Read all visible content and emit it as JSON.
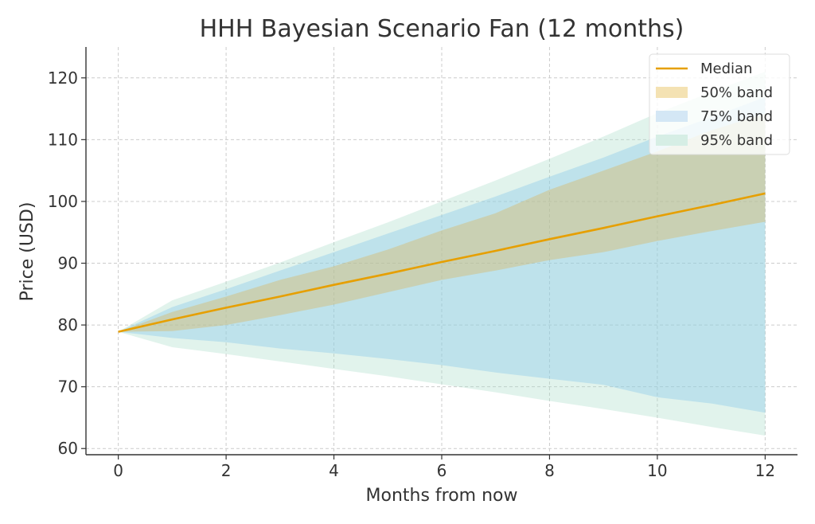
{
  "chart_data": {
    "type": "area",
    "title": "HHH Bayesian Scenario Fan (12 months)",
    "xlabel": "Months from now",
    "ylabel": "Price (USD)",
    "xlim": [
      -0.6,
      12.6
    ],
    "ylim": [
      59,
      125
    ],
    "xticks": [
      0,
      2,
      4,
      6,
      8,
      10,
      12
    ],
    "yticks": [
      60,
      70,
      80,
      90,
      100,
      110,
      120
    ],
    "grid": true,
    "legend_position": "top-right",
    "x": [
      0,
      1,
      2,
      3,
      4,
      5,
      6,
      7,
      8,
      9,
      10,
      11,
      12
    ],
    "median": [
      78.9,
      80.9,
      82.8,
      84.6,
      86.5,
      88.3,
      90.2,
      92.0,
      93.9,
      95.7,
      97.6,
      99.4,
      101.3
    ],
    "bands": [
      {
        "name": "95% band",
        "color": "#d6eee5",
        "lower": [
          78.9,
          76.4,
          75.3,
          74.1,
          72.9,
          71.7,
          70.4,
          69.1,
          67.7,
          66.4,
          65.0,
          63.5,
          62.1
        ],
        "upper": [
          78.9,
          84.0,
          87.0,
          90.1,
          93.4,
          96.6,
          100.0,
          103.4,
          106.9,
          110.5,
          114.3,
          117.7,
          121.0
        ]
      },
      {
        "name": "75% band",
        "color": "#d4e7f5",
        "lower": [
          78.9,
          77.9,
          77.2,
          76.2,
          75.4,
          74.5,
          73.5,
          72.3,
          71.3,
          70.3,
          68.3,
          67.3,
          65.8
        ],
        "upper": [
          78.9,
          82.9,
          85.8,
          88.8,
          91.8,
          94.8,
          97.8,
          100.8,
          104.0,
          107.1,
          110.5,
          113.6,
          116.9
        ]
      },
      {
        "name": "50% band",
        "color": "#f4e2b3",
        "lower": [
          78.9,
          79.0,
          80.0,
          81.6,
          83.3,
          85.3,
          87.3,
          88.8,
          90.5,
          91.8,
          93.6,
          95.2,
          96.7
        ]
      }
    ],
    "band50_upper": [
      78.9,
      82.1,
      84.6,
      87.3,
      89.5,
      92.2,
      95.3,
      98.1,
      101.9,
      105.0,
      108.1,
      111.5,
      114.2
    ],
    "median_color": "#e69f00",
    "legend": [
      {
        "label": "Median",
        "kind": "line",
        "color": "#e69f00"
      },
      {
        "label": "50% band",
        "kind": "patch",
        "color": "#f4e2b3"
      },
      {
        "label": "75% band",
        "kind": "patch",
        "color": "#d4e7f5"
      },
      {
        "label": "95% band",
        "kind": "patch",
        "color": "#d6eee5"
      }
    ]
  }
}
